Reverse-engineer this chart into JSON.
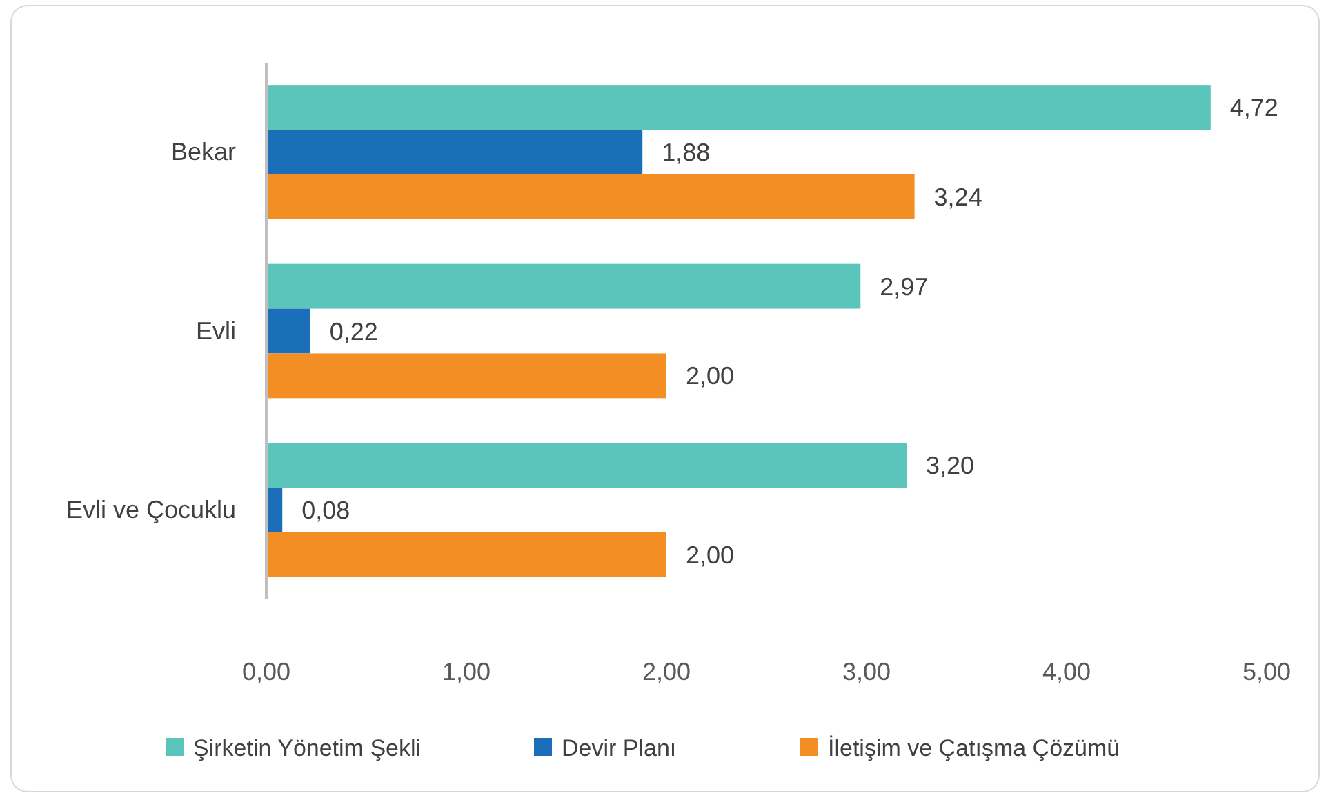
{
  "chart_data": {
    "type": "bar",
    "orientation": "horizontal",
    "categories": [
      "Bekar",
      "Evli",
      "Evli ve Çocuklu"
    ],
    "series": [
      {
        "name": "Şirketin Yönetim Şekli",
        "color": "#5bc5bc",
        "values": [
          4.72,
          2.97,
          3.2
        ],
        "value_labels": [
          "4,72",
          "2,97",
          "3,20"
        ]
      },
      {
        "name": "Devir Planı",
        "color": "#1a6fb8",
        "values": [
          1.88,
          0.22,
          0.08
        ],
        "value_labels": [
          "1,88",
          "0,22",
          "0,08"
        ]
      },
      {
        "name": "İletişim ve Çatışma Çözümü",
        "color": "#f28e23",
        "values": [
          3.24,
          2.0,
          2.0
        ],
        "value_labels": [
          "3,24",
          "2,00",
          "2,00"
        ]
      }
    ],
    "xlim": [
      0,
      5
    ],
    "xticks": [
      {
        "value": 0,
        "label": "0,00"
      },
      {
        "value": 1,
        "label": "1,00"
      },
      {
        "value": 2,
        "label": "2,00"
      },
      {
        "value": 3,
        "label": "3,00"
      },
      {
        "value": 4,
        "label": "4,00"
      },
      {
        "value": 5,
        "label": "5,00"
      }
    ],
    "grid": false,
    "legend": "bottom"
  }
}
